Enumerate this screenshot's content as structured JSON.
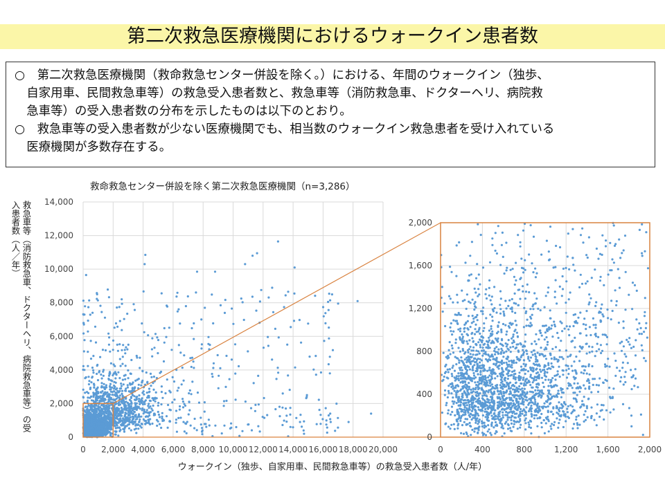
{
  "title": "第二次救急医療機関におけるウォークイン患者数",
  "notes": [
    "○　第二次救急医療機関（救命救急センター併設を除く。）における、年間のウォークイン（独歩、",
    "　自家用車、民間救急車等）の救急受入患者数と、救急車等（消防救急車、ドクターヘリ、病院救",
    "　急車等）の受入患者数の分布を示したものは以下のとおり。",
    "○　救急車等の受入患者数が少ない医療機関でも、相当数のウォークイン救急患者を受け入れている",
    "　医療機関が多数存在する。"
  ],
  "chart_data": {
    "type": "scatter",
    "title": "救命救急センター併設を除く第二次救急医療機関（n=3,286）",
    "xlabel": "ウォークイン（独歩、自家用車、民間救急車等）の救急受入患者数（人/年）",
    "ylabel": "救急車等（消防救急車、ドクターヘリ、病院救急車等）の受入患者数（人／年）",
    "n": 3286,
    "main": {
      "xlim": [
        0,
        20000
      ],
      "ylim": [
        0,
        14000
      ],
      "xticks": [
        "0",
        "2,000",
        "4,000",
        "6,000",
        "8,000",
        "10,000",
        "12,000",
        "14,000",
        "16,000",
        "18,000",
        "20,000"
      ],
      "yticks": [
        "0",
        "2,000",
        "4,000",
        "6,000",
        "8,000",
        "10,000",
        "12,000",
        "14,000"
      ],
      "grid": true
    },
    "inset": {
      "xlim": [
        0,
        2000
      ],
      "ylim": [
        0,
        2000
      ],
      "xticks": [
        "0",
        "400",
        "800",
        "1,200",
        "1,600",
        "2,000"
      ],
      "yticks": [
        "0",
        "400",
        "800",
        "1,200",
        "1,600",
        "2,000"
      ],
      "grid": true
    },
    "zoom_region": {
      "x": [
        0,
        2000
      ],
      "y": [
        0,
        2000
      ]
    },
    "notable_points": [
      {
        "x": 200,
        "y": 9650
      },
      {
        "x": 4100,
        "y": 10300
      },
      {
        "x": 4150,
        "y": 10850
      },
      {
        "x": 7600,
        "y": 9850
      },
      {
        "x": 8800,
        "y": 9850
      },
      {
        "x": 10800,
        "y": 10300
      },
      {
        "x": 11300,
        "y": 10800
      },
      {
        "x": 11600,
        "y": 10950
      },
      {
        "x": 13000,
        "y": 11650
      },
      {
        "x": 14100,
        "y": 10100
      },
      {
        "x": 16600,
        "y": 8500
      },
      {
        "x": 17000,
        "y": 7950
      },
      {
        "x": 18300,
        "y": 8100
      },
      {
        "x": 19200,
        "y": 1400
      },
      {
        "x": 17700,
        "y": 900
      }
    ],
    "point_color": "#5b9bd5",
    "zoom_color": "#d9823f"
  }
}
